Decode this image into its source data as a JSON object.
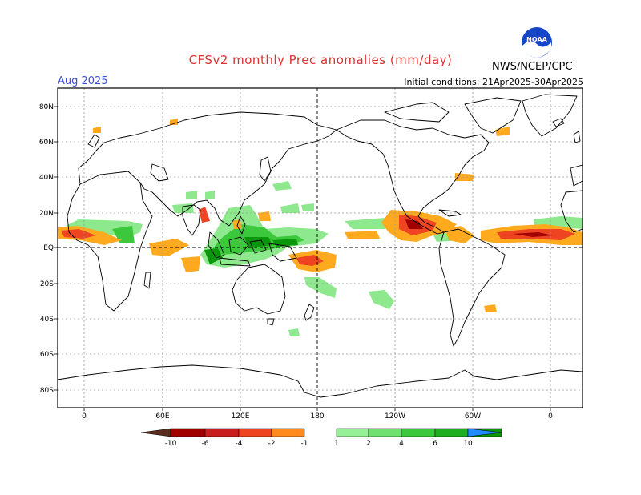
{
  "header": {
    "title": "CFSv2 monthly Prec anomalies (mm/day)",
    "month": "Aug 2025",
    "initial_conditions": "Initial conditions: 21Apr2025-30Apr2025",
    "agency": "NWS/NCEP/CPC",
    "logo_text": "NOAA"
  },
  "axes": {
    "lat_labels": [
      "80N",
      "60N",
      "40N",
      "20N",
      "EQ",
      "20S",
      "40S",
      "60S",
      "80S"
    ],
    "lon_labels": [
      "0",
      "60E",
      "120E",
      "180",
      "120W",
      "60W",
      "0"
    ]
  },
  "colorbar": {
    "labels": [
      "-10",
      "-6",
      "-4",
      "-2",
      "-1",
      "1",
      "2",
      "4",
      "6",
      "10"
    ],
    "dry_colors": [
      "#5a2e1e",
      "#a10000",
      "#c81e1e",
      "#ee4422",
      "#ff8a1e",
      "#ffaa1e"
    ],
    "wet_colors": [
      "#96f096",
      "#70e070",
      "#3cc83c",
      "#1fae1f",
      "#0a960a",
      "#1e8cff"
    ]
  },
  "colors": {
    "wet_light": "#8ee88e",
    "wet_mid": "#3cc83c",
    "wet_dark": "#0a960a",
    "dry_light": "#ffaa1e",
    "dry_mid": "#ee4422",
    "dry_dark": "#a10000"
  }
}
